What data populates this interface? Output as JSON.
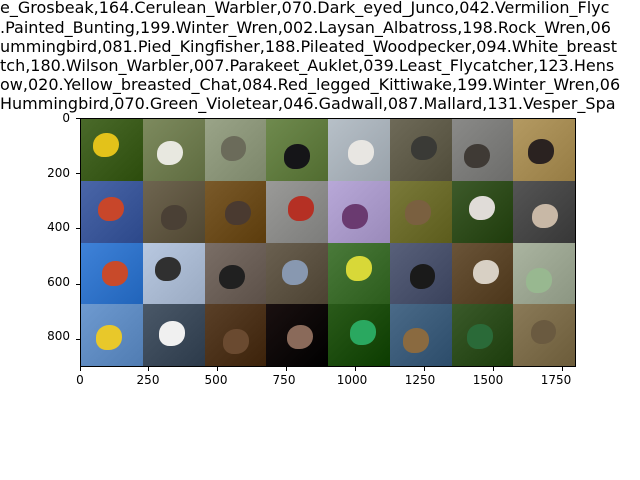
{
  "title_lines": [
    "e_Grosbeak,164.Cerulean_Warbler,070.Dark_eyed_Junco,042.Vermilion_Flyc",
    ".Painted_Bunting,199.Winter_Wren,002.Laysan_Albatross,198.Rock_Wren,06",
    "ummingbird,081.Pied_Kingfisher,188.Pileated_Woodpecker,094.White_breast",
    "tch,180.Wilson_Warbler,007.Parakeet_Auklet,039.Least_Flycatcher,123.Hens",
    "ow,020.Yellow_breasted_Chat,084.Red_legged_Kittiwake,199.Winter_Wren,06",
    "Hummingbird,070.Green_Violetear,046.Gadwall,087.Mallard,131.Vesper_Spa"
  ],
  "axes": {
    "x_ticks": [
      "0",
      "250",
      "500",
      "750",
      "1000",
      "1250",
      "1500",
      "1750"
    ],
    "y_ticks": [
      "0",
      "200",
      "400",
      "600",
      "800"
    ],
    "x_range": [
      0,
      1800
    ],
    "y_range": [
      900,
      0
    ]
  },
  "tiles": [
    {
      "bg": "#4a6a2a",
      "bird": "#e3c21a"
    },
    {
      "bg": "#7d8a5e",
      "bird": "#e8e8e0"
    },
    {
      "bg": "#9aa488",
      "bird": "#6b6b5a"
    },
    {
      "bg": "#6f8a4e",
      "bird": "#151518"
    },
    {
      "bg": "#b7c0c8",
      "bird": "#e8e6e2"
    },
    {
      "bg": "#6e6a58",
      "bird": "#3a3a36"
    },
    {
      "bg": "#8a8a88",
      "bird": "#3f3a35"
    },
    {
      "bg": "#b49a62",
      "bird": "#2a2220"
    },
    {
      "bg": "#4a66a8",
      "bird": "#c8462a"
    },
    {
      "bg": "#6e6550",
      "bird": "#4a4035"
    },
    {
      "bg": "#7a5a2a",
      "bird": "#4a3a30"
    },
    {
      "bg": "#9a9a98",
      "bird": "#b53024"
    },
    {
      "bg": "#b8a8d8",
      "bird": "#6a3a70"
    },
    {
      "bg": "#7a7a3a",
      "bird": "#7a6040"
    },
    {
      "bg": "#3d5a2a",
      "bird": "#e0dcd8"
    },
    {
      "bg": "#555555",
      "bird": "#c8b8a6"
    },
    {
      "bg": "#3f82d8",
      "bird": "#c84a2a"
    },
    {
      "bg": "#b8c8e0",
      "bird": "#303030"
    },
    {
      "bg": "#7a6e66",
      "bird": "#202020"
    },
    {
      "bg": "#6a6050",
      "bird": "#8898b0"
    },
    {
      "bg": "#4a7a3a",
      "bird": "#d8d838"
    },
    {
      "bg": "#58607a",
      "bird": "#1a1a1a"
    },
    {
      "bg": "#6a5438",
      "bird": "#d8d0c4"
    },
    {
      "bg": "#aab4a0",
      "bird": "#98b890"
    },
    {
      "bg": "#6e9ad0",
      "bird": "#e8c82a"
    },
    {
      "bg": "#4a5868",
      "bird": "#f0f0f0"
    },
    {
      "bg": "#5a4028",
      "bird": "#6a4a30"
    },
    {
      "bg": "#1a1010",
      "bird": "#8a6a5a"
    },
    {
      "bg": "#2a5a1a",
      "bird": "#2aa860"
    },
    {
      "bg": "#4a6a88",
      "bird": "#8a6a40"
    },
    {
      "bg": "#3a5a2a",
      "bird": "#2a6a38"
    },
    {
      "bg": "#8a7a58",
      "bird": "#6a5a40"
    }
  ]
}
